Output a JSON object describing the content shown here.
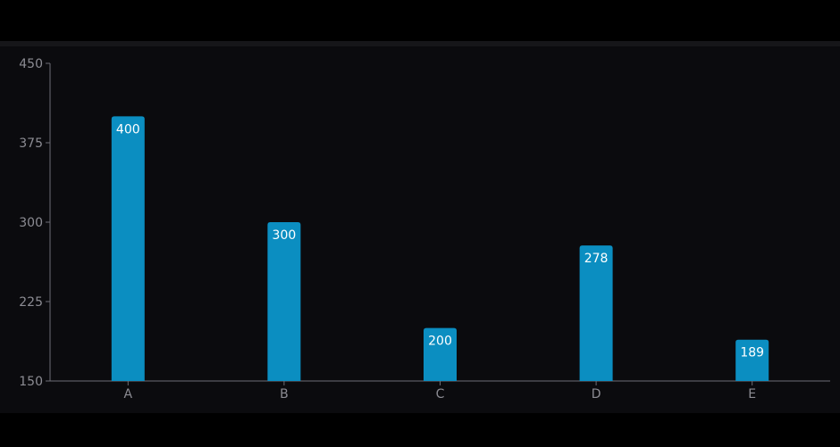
{
  "chart_data": {
    "type": "bar",
    "categories": [
      "A",
      "B",
      "C",
      "D",
      "E"
    ],
    "values": [
      400,
      300,
      200,
      278,
      189
    ],
    "ylim": [
      150,
      450
    ],
    "yticks": [
      150,
      225,
      300,
      375,
      450
    ],
    "title": "",
    "xlabel": "",
    "ylabel": "",
    "grid": false,
    "legend": "none",
    "colors": {
      "bar": "#0b8ec1",
      "axis": "#6e6e75",
      "tick_text": "#8c8c93",
      "label_text": "#ffffff",
      "panel_bg": "#0b0b0e",
      "page_bg": "#000000"
    }
  }
}
